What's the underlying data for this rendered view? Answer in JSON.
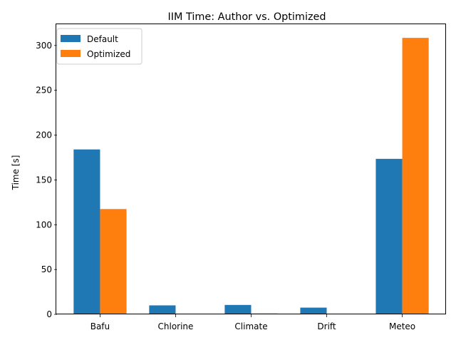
{
  "chart_data": {
    "type": "bar",
    "title": "IIM Time: Author vs. Optimized",
    "xlabel": "",
    "ylabel": "Time [s]",
    "categories": [
      "Bafu",
      "Chlorine",
      "Climate",
      "Drift",
      "Meteo"
    ],
    "series": [
      {
        "name": "Default",
        "color": "#1f77b4",
        "values": [
          184,
          10,
          10.5,
          7.5,
          173.5
        ]
      },
      {
        "name": "Optimized",
        "color": "#ff7f0e",
        "values": [
          117.5,
          0.2,
          1.0,
          0.2,
          308.5
        ]
      }
    ],
    "ylim": [
      0,
      323.7
    ],
    "yticks": [
      0,
      50,
      100,
      150,
      200,
      250,
      300
    ],
    "grid": false,
    "legend_position": "top-left"
  }
}
